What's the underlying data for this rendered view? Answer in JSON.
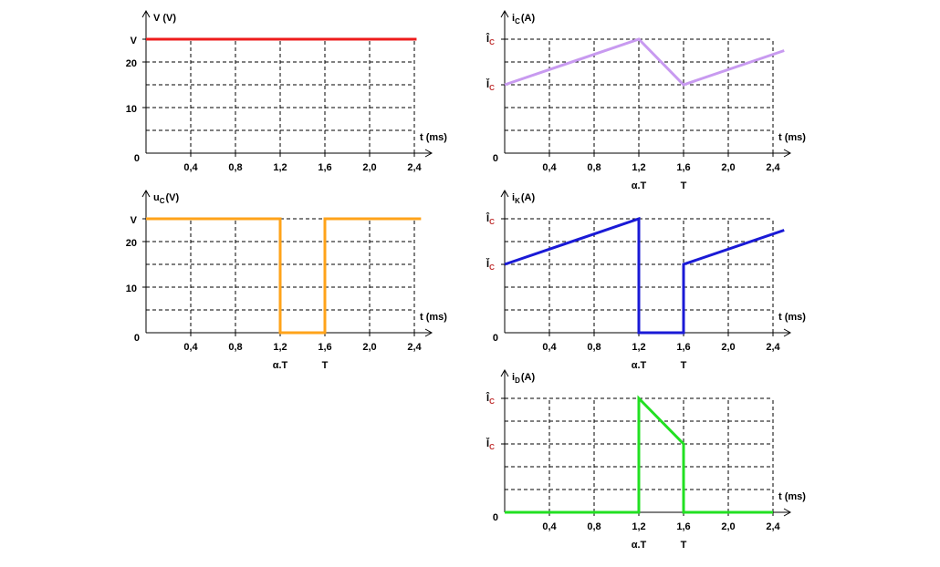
{
  "chart_data": [
    {
      "type": "line",
      "y_label": "V (V)",
      "x_label": "t (ms)",
      "xlim": [
        0,
        2.4
      ],
      "ylim": [
        0,
        25
      ],
      "xticks": [
        {
          "value": 0.4,
          "label": "0,4"
        },
        {
          "value": 0.8,
          "label": "0,8"
        },
        {
          "value": 1.2,
          "label": "1,2"
        },
        {
          "value": 1.6,
          "label": "1,6"
        },
        {
          "value": 2.0,
          "label": "2,0"
        },
        {
          "value": 2.4,
          "label": "2,4"
        }
      ],
      "yticks": [
        0,
        10,
        20,
        {
          "value": 25,
          "label": "V"
        }
      ],
      "ygrid": [
        5,
        10,
        15,
        20,
        25
      ],
      "grid": true,
      "series": [
        {
          "color": "#ee1c1c",
          "x": [
            0,
            2.42
          ],
          "values": [
            25,
            25
          ]
        }
      ]
    },
    {
      "type": "line",
      "y_label": "u",
      "y_label_sub": "C",
      "y_label_unit": "(V)",
      "x_label": "t (ms)",
      "xlim": [
        0,
        2.4
      ],
      "ylim": [
        0,
        25
      ],
      "xticks": [
        {
          "value": 0.4,
          "label": "0,4"
        },
        {
          "value": 0.8,
          "label": "0,8"
        },
        {
          "value": 1.2,
          "label": "1,2"
        },
        {
          "value": 1.6,
          "label": "1,6"
        },
        {
          "value": 2.0,
          "label": "2,0"
        },
        {
          "value": 2.4,
          "label": "2,4"
        }
      ],
      "yticks": [
        0,
        10,
        20,
        {
          "value": 25,
          "label": "V"
        }
      ],
      "ygrid": [
        5,
        10,
        15,
        20,
        25
      ],
      "grid": true,
      "annotations": [
        {
          "x": 1.2,
          "text": "α.T"
        },
        {
          "x": 1.6,
          "text": "T"
        }
      ],
      "series": [
        {
          "color": "#ffa31a",
          "x": [
            0,
            1.2,
            1.2,
            1.6,
            1.6,
            2.46
          ],
          "values": [
            25,
            25,
            0,
            0,
            25,
            25
          ]
        }
      ]
    },
    {
      "type": "line",
      "y_label": "i",
      "y_label_sub": "C",
      "y_label_unit": "(A)",
      "x_label": "t (ms)",
      "xlim": [
        0,
        2.4
      ],
      "ylim": [
        0,
        25
      ],
      "xticks": [
        {
          "value": 0.4,
          "label": "0,4"
        },
        {
          "value": 0.8,
          "label": "0,8"
        },
        {
          "value": 1.2,
          "label": "1,2"
        },
        {
          "value": 1.6,
          "label": "1,6"
        },
        {
          "value": 2.0,
          "label": "2,0"
        },
        {
          "value": 2.4,
          "label": "2,4"
        }
      ],
      "yticks": [
        0,
        {
          "value": 15,
          "label": "Ǐ",
          "sub": "C"
        },
        {
          "value": 25,
          "label": "Î",
          "sub": "C"
        }
      ],
      "ygrid": [
        5,
        10,
        15,
        20,
        25
      ],
      "grid": true,
      "annotations": [
        {
          "x": 1.2,
          "text": "α.T"
        },
        {
          "x": 1.6,
          "text": "T"
        }
      ],
      "series": [
        {
          "color": "#c89af0",
          "x": [
            0,
            1.2,
            1.6,
            2.5
          ],
          "values": [
            15,
            25,
            15,
            22.5
          ]
        }
      ]
    },
    {
      "type": "line",
      "y_label": "i",
      "y_label_sub": "K",
      "y_label_unit": "(A)",
      "x_label": "t (ms)",
      "xlim": [
        0,
        2.4
      ],
      "ylim": [
        0,
        25
      ],
      "xticks": [
        {
          "value": 0.4,
          "label": "0,4"
        },
        {
          "value": 0.8,
          "label": "0,8"
        },
        {
          "value": 1.2,
          "label": "1,2"
        },
        {
          "value": 1.6,
          "label": "1,6"
        },
        {
          "value": 2.0,
          "label": "2,0"
        },
        {
          "value": 2.4,
          "label": "2,4"
        }
      ],
      "yticks": [
        0,
        {
          "value": 15,
          "label": "Ǐ",
          "sub": "C"
        },
        {
          "value": 25,
          "label": "Î",
          "sub": "C"
        }
      ],
      "ygrid": [
        5,
        10,
        15,
        20,
        25
      ],
      "grid": true,
      "annotations": [
        {
          "x": 1.2,
          "text": "α.T"
        },
        {
          "x": 1.6,
          "text": "T"
        }
      ],
      "series": [
        {
          "color": "#1a1ad6",
          "x": [
            0,
            1.2,
            1.2,
            1.6,
            1.6,
            2.5
          ],
          "values": [
            15,
            25,
            0,
            0,
            15,
            22.5
          ]
        }
      ]
    },
    {
      "type": "line",
      "y_label": "i",
      "y_label_sub": "D",
      "y_label_unit": "(A)",
      "x_label": "t (ms)",
      "xlim": [
        0,
        2.4
      ],
      "ylim": [
        0,
        25
      ],
      "xticks": [
        {
          "value": 0.4,
          "label": "0,4"
        },
        {
          "value": 0.8,
          "label": "0,8"
        },
        {
          "value": 1.2,
          "label": "1,2"
        },
        {
          "value": 1.6,
          "label": "1,6"
        },
        {
          "value": 2.0,
          "label": "2,0"
        },
        {
          "value": 2.4,
          "label": "2,4"
        }
      ],
      "yticks": [
        0,
        {
          "value": 15,
          "label": "Ǐ",
          "sub": "C"
        },
        {
          "value": 25,
          "label": "Î",
          "sub": "C"
        }
      ],
      "ygrid": [
        5,
        10,
        15,
        20,
        25
      ],
      "grid": true,
      "annotations": [
        {
          "x": 1.2,
          "text": "α.T"
        },
        {
          "x": 1.6,
          "text": "T"
        }
      ],
      "series": [
        {
          "color": "#22e022",
          "x": [
            0,
            1.2,
            1.2,
            1.6,
            1.6,
            2.4
          ],
          "values": [
            0,
            0,
            25,
            15,
            0,
            0
          ]
        }
      ]
    }
  ]
}
